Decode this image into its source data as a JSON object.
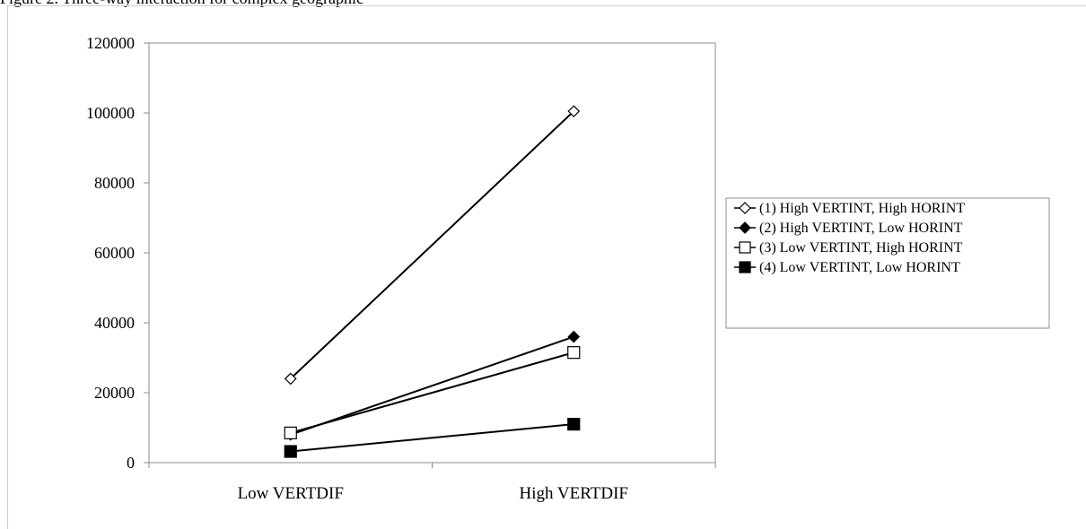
{
  "page": {
    "top_strip_text": "Figure 2. Three-way interaction for complex geographic"
  },
  "chart_data": {
    "type": "line",
    "title": "",
    "xlabel": "",
    "ylabel": "",
    "categories": [
      "Low VERTDIF",
      "High VERTDIF"
    ],
    "ylim": [
      0,
      120000
    ],
    "yticks": [
      0,
      20000,
      40000,
      60000,
      80000,
      100000,
      120000
    ],
    "grid": false,
    "legend_position": "right",
    "series": [
      {
        "name": "(1) High VERTINT, High HORINT",
        "values": [
          24000,
          100500
        ],
        "marker": "diamond-open",
        "color": "#000000"
      },
      {
        "name": "(2) High VERTINT, Low HORINT",
        "values": [
          8000,
          36000
        ],
        "marker": "diamond-filled",
        "color": "#000000"
      },
      {
        "name": "(3) Low VERTINT, High HORINT",
        "values": [
          8500,
          31500
        ],
        "marker": "square-open",
        "color": "#000000"
      },
      {
        "name": "(4) Low VERTINT, Low HORINT",
        "values": [
          3200,
          11000
        ],
        "marker": "square-filled",
        "color": "#000000"
      }
    ]
  }
}
